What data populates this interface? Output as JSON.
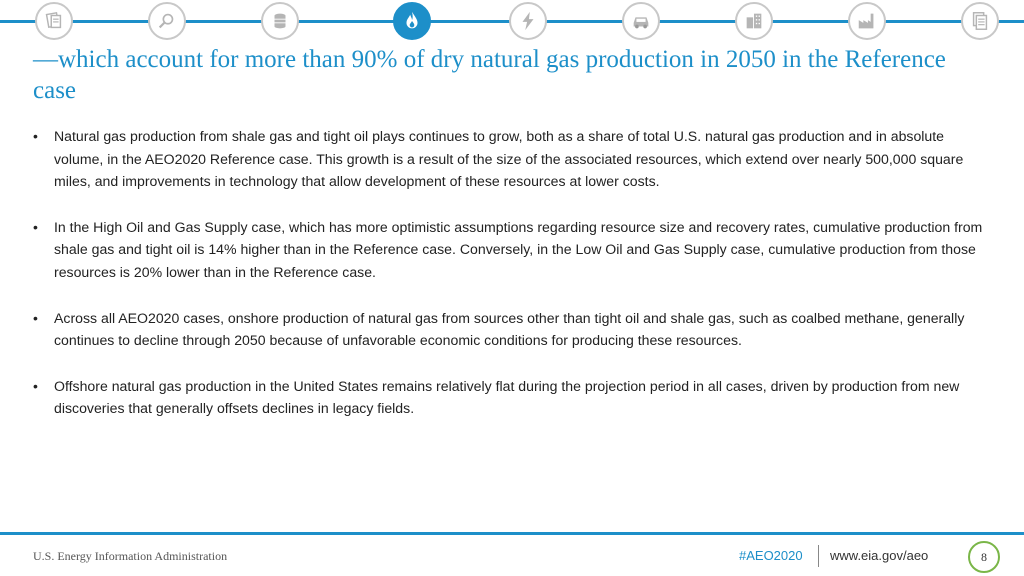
{
  "nav": {
    "icons": [
      {
        "name": "documents-icon"
      },
      {
        "name": "analysis-icon"
      },
      {
        "name": "petroleum-icon"
      },
      {
        "name": "natural-gas-icon",
        "active": true
      },
      {
        "name": "electricity-icon"
      },
      {
        "name": "transportation-icon"
      },
      {
        "name": "buildings-icon"
      },
      {
        "name": "industrial-icon"
      },
      {
        "name": "reports-icon"
      }
    ],
    "accent": "#1d8fc9"
  },
  "title": "—which account for more than 90% of dry natural gas production in 2050 in the Reference case",
  "bullets": [
    {
      "marker": "•",
      "text": "Natural gas production from shale gas and tight oil plays continues to grow, both as a share of total U.S. natural gas production and in absolute volume, in the AEO2020 Reference case. This growth is a result of the size of the associated resources, which extend over nearly 500,000 square miles, and improvements in technology that allow development of these resources at lower costs."
    },
    {
      "marker": "•",
      "text": "In the High Oil and Gas Supply case, which has more optimistic assumptions regarding resource size and recovery rates, cumulative production from shale gas and tight oil is 14% higher than in the Reference case. Conversely, in the Low Oil and Gas Supply case, cumulative production from those resources is 20% lower than in the Reference case."
    },
    {
      "marker": "•",
      "text": "Across all AEO2020 cases, onshore production of natural gas from sources other than tight oil and shale gas, such as coalbed methane, generally continues to decline through 2050 because of unfavorable economic conditions for producing these resources."
    },
    {
      "marker": "•",
      "text": "Offshore natural gas production in the United States remains relatively flat during the projection period in all cases, driven by production from new discoveries that generally offsets declines in legacy fields."
    }
  ],
  "footer": {
    "organization": "U.S. Energy Information Administration",
    "hashtag": "#AEO2020",
    "url": "www.eia.gov/aeo",
    "page_number": "8"
  }
}
